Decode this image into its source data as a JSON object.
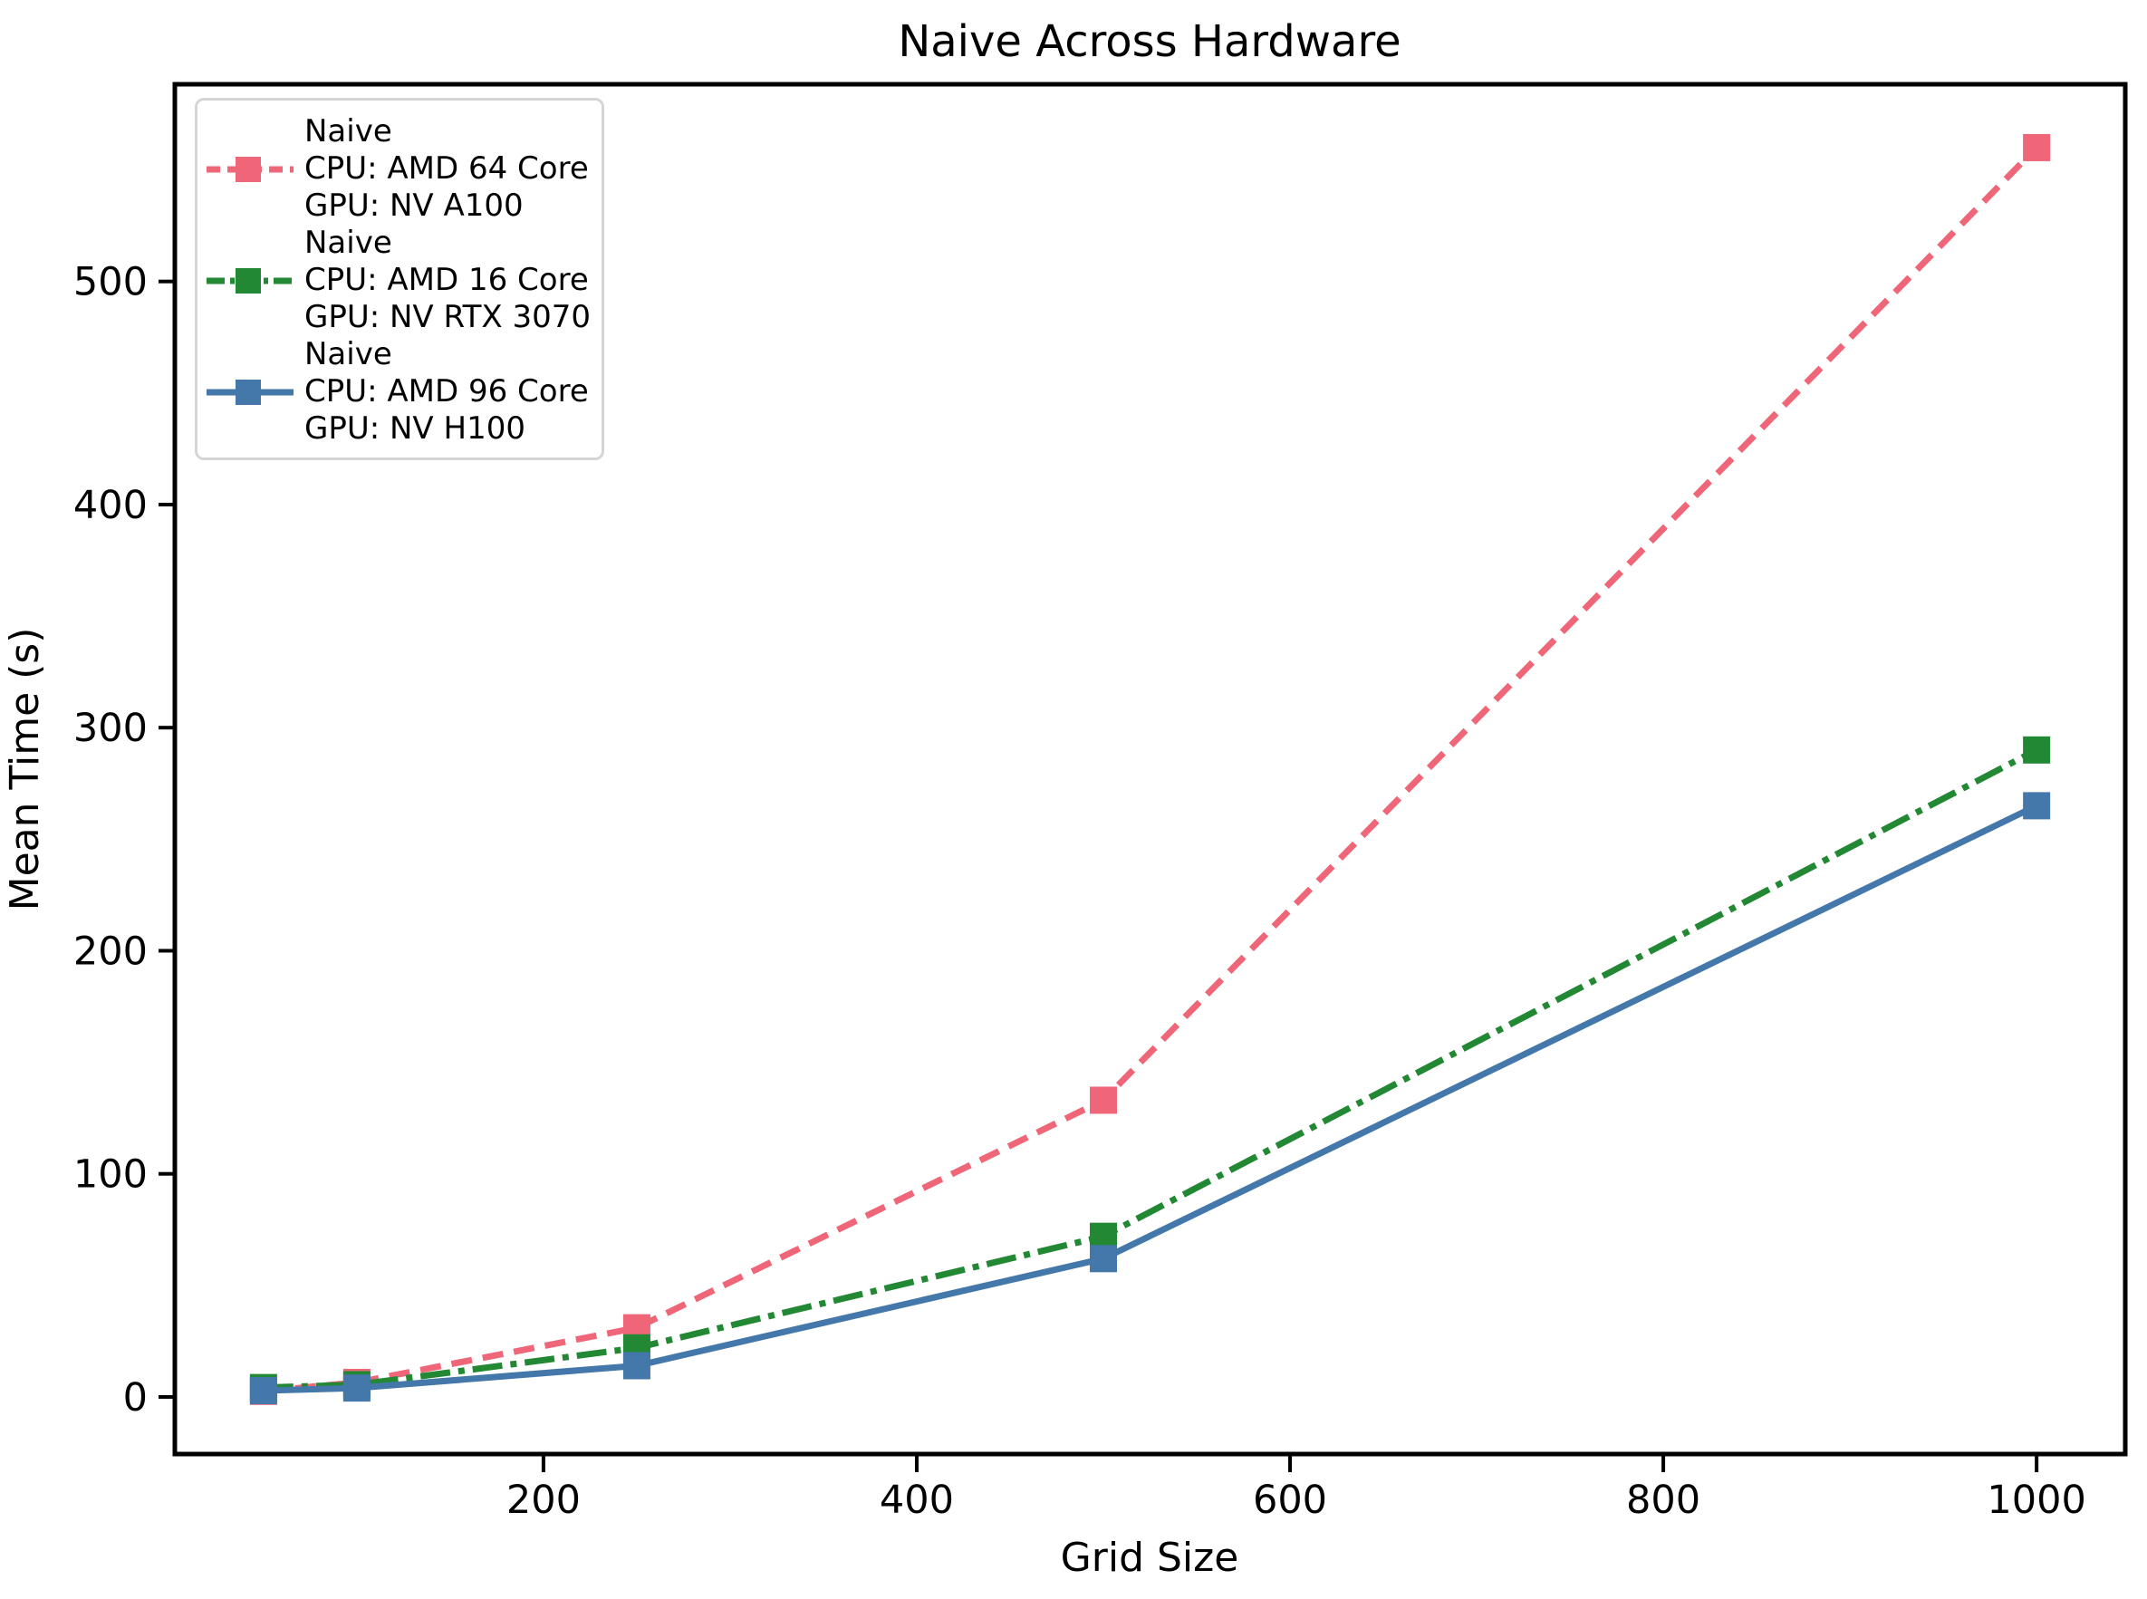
{
  "chart_data": {
    "type": "line",
    "title": "Naive Across Hardware",
    "xlabel": "Grid Size",
    "ylabel": "Mean Time (s)",
    "x": [
      50,
      100,
      250,
      500,
      1000
    ],
    "series": [
      {
        "name": "Naive CPU: AMD 64 Core GPU: NV A100",
        "legend_lines": [
          "Naive",
          "CPU: AMD 64 Core",
          "GPU: NV A100"
        ],
        "values": [
          2.5,
          6.5,
          31,
          133,
          560
        ],
        "color": "#EE6677",
        "linestyle": "dashed",
        "marker": "square"
      },
      {
        "name": "Naive CPU: AMD 16 Core GPU: NV RTX 3070",
        "legend_lines": [
          "Naive",
          "CPU: AMD 16 Core",
          "GPU: NV RTX 3070"
        ],
        "values": [
          4.2,
          5.5,
          22,
          72,
          290
        ],
        "color": "#228833",
        "linestyle": "dashdot",
        "marker": "square"
      },
      {
        "name": "Naive CPU: AMD 96 Core GPU: NV H100",
        "legend_lines": [
          "Naive",
          "CPU: AMD 96 Core",
          "GPU: NV H100"
        ],
        "values": [
          2.8,
          4.0,
          14,
          62,
          265
        ],
        "color": "#4477AA",
        "linestyle": "solid",
        "marker": "square"
      }
    ],
    "xticks": [
      200,
      400,
      600,
      800,
      1000
    ],
    "yticks": [
      0,
      100,
      200,
      300,
      400,
      500
    ],
    "xlim": [
      2.5,
      1047.5
    ],
    "ylim": [
      -25.6,
      588.4
    ],
    "legend_position": "upper-left",
    "grid": false,
    "axis_color": "#000000",
    "background_color": "#ffffff"
  }
}
